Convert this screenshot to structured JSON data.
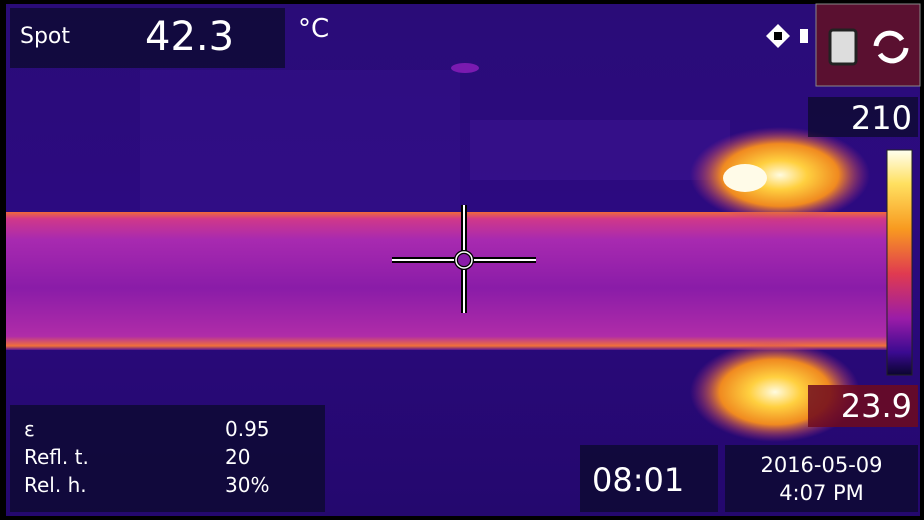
{
  "spot": {
    "label": "Spot",
    "value": "42.3",
    "unit": "°C"
  },
  "scale": {
    "max": "210",
    "min": "23.9"
  },
  "parameters": [
    {
      "label": "ε",
      "value": "0.95"
    },
    {
      "label": "Refl. t.",
      "value": "20"
    },
    {
      "label": "Rel. h.",
      "value": "30%"
    }
  ],
  "clock": "08:01",
  "timestamp": {
    "date": "2016-05-09",
    "time": "4:07 PM"
  }
}
